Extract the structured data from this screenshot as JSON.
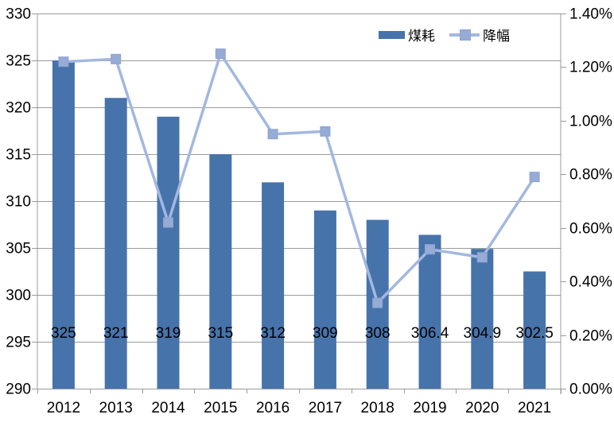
{
  "chart_data": {
    "type": "combo",
    "title": "",
    "categories": [
      "2012",
      "2013",
      "2014",
      "2015",
      "2016",
      "2017",
      "2018",
      "2019",
      "2020",
      "2021"
    ],
    "series": [
      {
        "name": "煤耗",
        "type": "bar",
        "axis": "left",
        "values": [
          325,
          321,
          319,
          315,
          312,
          309,
          308,
          306.4,
          304.9,
          302.5
        ],
        "data_labels": [
          "325",
          "321",
          "319",
          "315",
          "312",
          "309",
          "308",
          "306.4",
          "304.9",
          "302.5"
        ],
        "color": "#4773AB"
      },
      {
        "name": "降幅",
        "type": "line",
        "axis": "right",
        "values": [
          1.22,
          1.23,
          0.62,
          1.25,
          0.95,
          0.96,
          0.32,
          0.52,
          0.49,
          0.79
        ],
        "unit": "%",
        "color": "#A3B8DF",
        "marker": "square",
        "marker_fill": "#96ABD5",
        "marker_stroke": "#8CA3CF"
      }
    ],
    "left_axis": {
      "min": 290,
      "max": 330,
      "step": 5,
      "tick_labels": [
        "330",
        "325",
        "320",
        "315",
        "310",
        "305",
        "300",
        "295",
        "290"
      ]
    },
    "right_axis": {
      "min": 0,
      "max": 1.4,
      "step": 0.2,
      "tick_labels": [
        "1.40%",
        "1.20%",
        "1.00%",
        "0.80%",
        "0.60%",
        "0.40%",
        "0.20%",
        "0.00%"
      ]
    },
    "legend": {
      "position": "top-right",
      "entries": [
        "煤耗",
        "降幅"
      ]
    },
    "grid": true,
    "colors": {
      "background": "#FFFFFF",
      "grid": "#9B9B9B",
      "axis": "#9B9B9B",
      "text": "#000000"
    }
  }
}
